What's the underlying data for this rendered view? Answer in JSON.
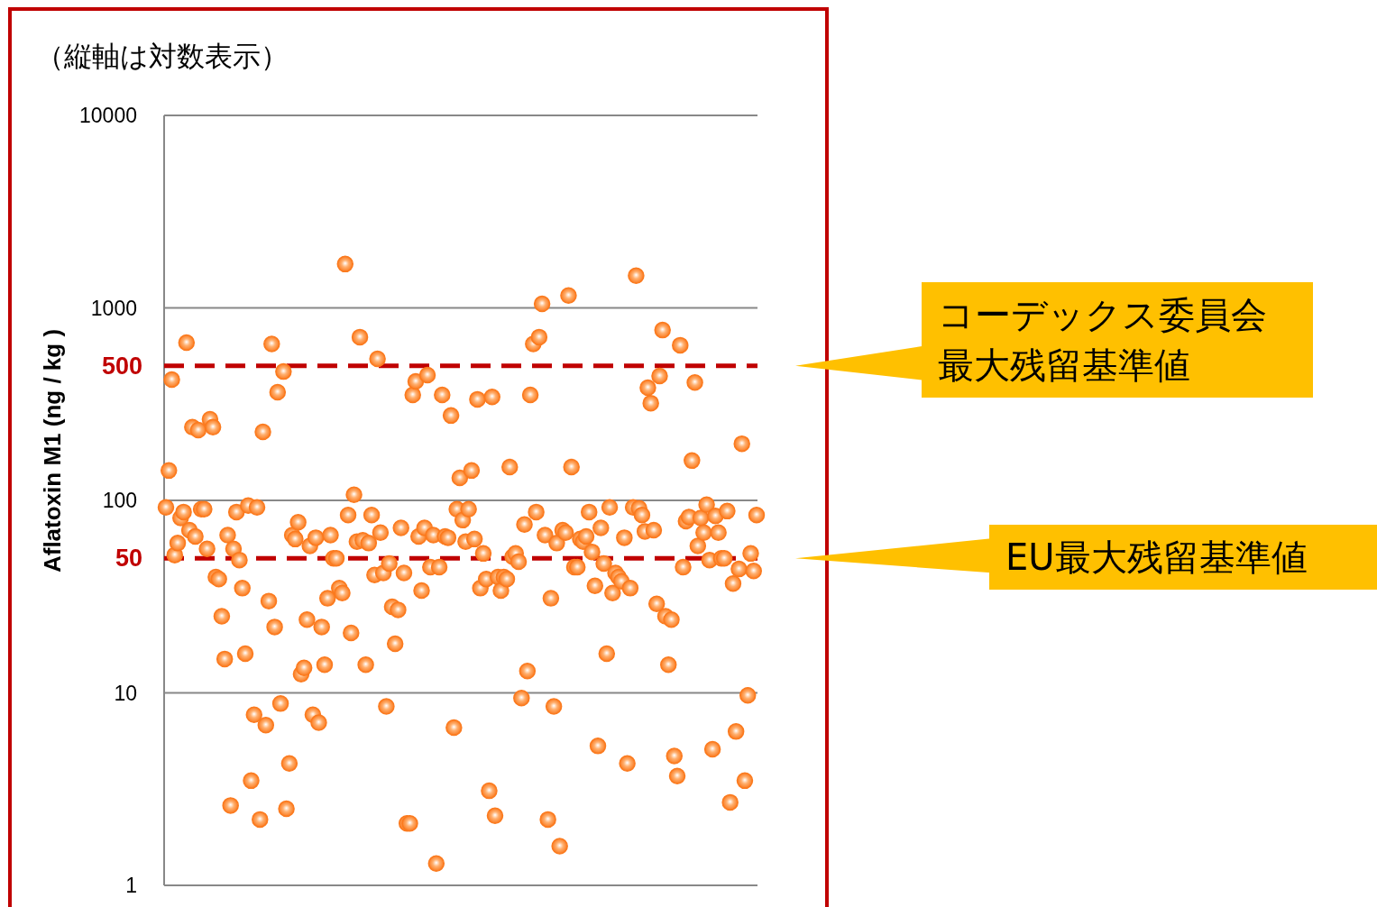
{
  "chart_data": {
    "type": "scatter",
    "title": "（縦軸は対数表示）",
    "ylabel": "Aflatoxin M1 (ng / kg )",
    "categories": [
      null,
      null,
      null,
      null,
      null,
      null,
      null,
      null,
      null,
      null,
      null,
      null,
      null,
      null,
      null,
      null,
      null,
      null,
      null,
      null,
      null,
      null,
      null,
      null,
      null,
      null,
      null,
      null,
      null,
      null,
      null,
      null,
      null,
      null,
      null,
      null,
      null,
      null,
      null,
      null,
      null,
      null,
      null,
      null,
      null,
      null,
      null,
      null,
      null,
      null,
      null,
      null,
      null,
      null,
      null,
      null,
      null,
      null,
      null,
      null,
      null,
      null,
      null,
      null,
      null,
      null,
      null,
      null,
      null,
      null,
      null,
      null,
      null,
      null,
      null,
      null,
      null,
      null,
      null,
      null,
      null,
      null,
      null,
      null,
      null,
      null,
      null,
      null,
      null,
      null,
      null,
      null,
      null,
      null,
      null,
      null,
      null,
      null,
      null,
      null,
      null,
      null,
      null,
      null,
      null,
      null,
      null,
      null,
      null,
      null,
      null,
      null,
      null,
      null,
      null,
      null,
      null,
      null,
      null,
      null,
      null,
      null,
      null,
      null,
      null,
      null,
      null,
      null,
      null,
      null,
      null,
      null,
      null,
      null,
      null,
      null,
      null,
      null,
      null,
      null,
      null,
      null,
      null,
      null,
      null,
      null,
      null,
      null,
      null,
      null,
      null,
      null,
      null,
      null,
      null,
      null,
      null,
      null,
      null,
      null,
      null,
      null,
      null,
      null,
      null,
      null,
      null,
      null,
      null,
      null,
      null,
      null,
      null,
      null,
      null,
      null,
      null,
      null,
      null,
      null,
      null,
      null,
      null,
      null,
      null,
      null,
      null,
      null,
      null,
      null,
      null,
      null,
      null,
      null,
      null,
      null,
      null,
      null,
      null,
      null,
      null,
      null
    ],
    "values": [
      92,
      143,
      424,
      52,
      60,
      81,
      87,
      660,
      70,
      240,
      65,
      232,
      90,
      90,
      56,
      264,
      240,
      40,
      39,
      25,
      15,
      66,
      2.6,
      56,
      87,
      49,
      35,
      16,
      94,
      3.5,
      7.7,
      92,
      2.2,
      227,
      6.8,
      30,
      650,
      22,
      365,
      8.8,
      467,
      2.5,
      4.3,
      66,
      63,
      77,
      12.5,
      13.5,
      24,
      58,
      7.7,
      64,
      7.0,
      22,
      14,
      31,
      66,
      50,
      50,
      35,
      33,
      1690,
      84,
      20.5,
      107,
      61,
      705,
      62,
      14,
      60,
      84,
      41,
      544,
      68,
      42,
      8.5,
      47,
      28,
      18,
      27,
      72,
      42,
      2.1,
      2.1,
      353,
      415,
      65,
      34,
      72,
      448,
      45,
      66,
      1.3,
      45,
      353,
      65,
      64,
      276,
      6.6,
      90,
      131,
      79,
      61,
      90,
      143,
      63,
      335,
      35,
      53,
      39,
      3.1,
      345,
      2.3,
      40,
      34,
      40,
      39,
      149,
      51,
      53,
      48,
      9.4,
      75,
      13,
      353,
      650,
      87,
      705,
      1050,
      66,
      2.2,
      31,
      8.5,
      60,
      1.6,
      70,
      68,
      1160,
      149,
      45,
      45,
      63,
      61,
      65,
      87,
      54,
      36,
      5.3,
      72,
      47,
      16,
      92,
      33,
      42,
      40,
      38,
      64,
      4.3,
      35,
      92,
      1470,
      91,
      84,
      69,
      385,
      320,
      70,
      29,
      443,
      767,
      25,
      14,
      24,
      4.7,
      3.7,
      640,
      45,
      78,
      82,
      161,
      410,
      58,
      81,
      68,
      95,
      49,
      5.1,
      83,
      68,
      50,
      50,
      88,
      2.7,
      37,
      6.3,
      44,
      197,
      3.5,
      9.7,
      53,
      43,
      84
    ],
    "color": "#fb7a1e",
    "marker": "circle",
    "log": "y",
    "grid": "y",
    "ylim": [
      1,
      10000
    ],
    "yticks": [
      1,
      10,
      100,
      1000,
      10000
    ],
    "ref_lines": [
      {
        "axis": "y",
        "value": 500,
        "label": "500",
        "color": "#c00000",
        "line_style": "dashed"
      },
      {
        "axis": "y",
        "value": 50,
        "label": "50",
        "color": "#c00000",
        "line_style": "dashed"
      }
    ],
    "annotations": [
      "コーデックス委員会最大残留基準値",
      "EU最大残留基準値"
    ]
  }
}
